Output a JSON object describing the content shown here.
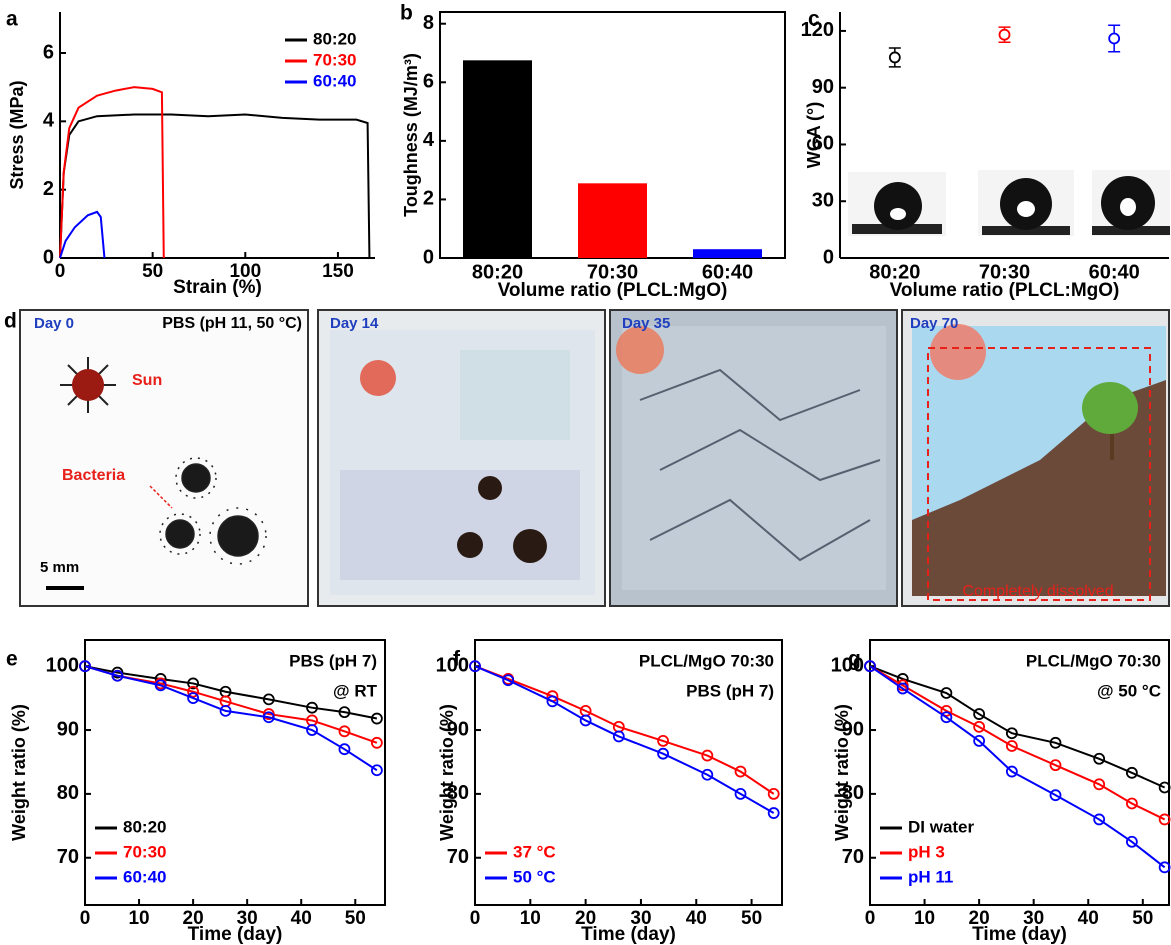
{
  "chart_data": [
    {
      "panel": "a",
      "type": "line",
      "markers": false,
      "xlabel": "Strain (%)",
      "ylabel": "Stress (MPa)",
      "xlim": [
        0,
        170
      ],
      "ylim": [
        0,
        7.2
      ],
      "xticks": [
        0,
        50,
        100,
        150
      ],
      "yticks": [
        0,
        2,
        4,
        6
      ],
      "legend": "upper right",
      "series": [
        {
          "name": "80:20",
          "color": "#000000",
          "x": [
            0,
            2,
            5,
            10,
            20,
            40,
            60,
            80,
            100,
            120,
            140,
            160,
            166,
            167
          ],
          "values": [
            0,
            2.5,
            3.6,
            4.0,
            4.15,
            4.2,
            4.2,
            4.15,
            4.2,
            4.1,
            4.05,
            4.05,
            3.95,
            0
          ]
        },
        {
          "name": "70:30",
          "color": "#ff0000",
          "x": [
            0,
            2,
            5,
            10,
            20,
            30,
            40,
            50,
            55,
            56
          ],
          "values": [
            0,
            2.5,
            3.8,
            4.4,
            4.75,
            4.9,
            5.0,
            4.95,
            4.85,
            0
          ]
        },
        {
          "name": "60:40",
          "color": "#0000ff",
          "x": [
            0,
            3,
            8,
            15,
            20,
            22,
            24
          ],
          "values": [
            0,
            0.5,
            0.9,
            1.25,
            1.35,
            1.2,
            0
          ]
        }
      ]
    },
    {
      "panel": "b",
      "type": "bar",
      "xlabel": "Volume ratio (PLCL:MgO)",
      "ylabel": "Toughness (MJ/m³)",
      "ylim": [
        0,
        8.4
      ],
      "yticks": [
        0,
        2,
        4,
        6,
        8
      ],
      "categories": [
        "80:20",
        "70:30",
        "60:40"
      ],
      "values": [
        6.75,
        2.55,
        0.3
      ],
      "colors": [
        "#000000",
        "#ff0000",
        "#0000ff"
      ]
    },
    {
      "panel": "c",
      "type": "scatter",
      "xlabel": "Volume ratio (PLCL:MgO)",
      "ylabel": "WCA (°)",
      "ylim": [
        0,
        130
      ],
      "yticks": [
        0,
        30,
        60,
        90,
        120
      ],
      "categories": [
        "80:20",
        "70:30",
        "60:40"
      ],
      "values": [
        106,
        118,
        116
      ],
      "errors": [
        5,
        4,
        7
      ],
      "colors": [
        "#000000",
        "#ff0000",
        "#0000ff"
      ]
    },
    {
      "panel": "e",
      "type": "line",
      "markers": true,
      "xlabel": "Time (day)",
      "ylabel": "Weight ratio (%)",
      "xlim": [
        0,
        55.5
      ],
      "ylim": [
        62.6,
        104.1
      ],
      "xticks": [
        0,
        10,
        20,
        30,
        40,
        50
      ],
      "yticks": [
        70,
        80,
        90,
        100
      ],
      "legend": "lower left",
      "annotations": [
        "PBS (pH 7)",
        "@ RT"
      ],
      "x": [
        0,
        6,
        14,
        20,
        26,
        34,
        42,
        48,
        54
      ],
      "series": [
        {
          "name": "80:20",
          "color": "#000000",
          "values": [
            100,
            99,
            98,
            97.3,
            96,
            94.8,
            93.5,
            92.8,
            91.8
          ]
        },
        {
          "name": "70:30",
          "color": "#ff0000",
          "values": [
            100,
            98.5,
            97.3,
            96,
            94.5,
            92.5,
            91.5,
            89.8,
            88
          ]
        },
        {
          "name": "60:40",
          "color": "#0000ff",
          "values": [
            100,
            98.5,
            97,
            95,
            93,
            92,
            90,
            87,
            83.7
          ]
        }
      ]
    },
    {
      "panel": "f",
      "type": "line",
      "markers": true,
      "xlabel": "Time (day)",
      "ylabel": "Weight ratio (%)",
      "xlim": [
        0,
        55.5
      ],
      "ylim": [
        62.6,
        104.1
      ],
      "xticks": [
        0,
        10,
        20,
        30,
        40,
        50
      ],
      "yticks": [
        70,
        80,
        90,
        100
      ],
      "legend": "lower left",
      "annotations": [
        "PLCL/MgO 70:30",
        "PBS (pH 7)"
      ],
      "x": [
        0,
        6,
        14,
        20,
        26,
        34,
        42,
        48,
        54
      ],
      "series": [
        {
          "name": "37 °C",
          "color": "#ff0000",
          "values": [
            100,
            98,
            95.3,
            93,
            90.5,
            88.3,
            86,
            83.5,
            80
          ]
        },
        {
          "name": "50 °C",
          "color": "#0000ff",
          "values": [
            100,
            97.8,
            94.5,
            91.5,
            89,
            86.3,
            83,
            80,
            77
          ]
        }
      ]
    },
    {
      "panel": "g",
      "type": "line",
      "markers": true,
      "xlabel": "Time (day)",
      "ylabel": "Weight ratio (%)",
      "xlim": [
        0,
        54.8
      ],
      "ylim": [
        62.6,
        104.1
      ],
      "xticks": [
        0,
        10,
        20,
        30,
        40,
        50
      ],
      "yticks": [
        70,
        80,
        90,
        100
      ],
      "legend": "lower left",
      "annotations": [
        "PLCL/MgO 70:30",
        "@ 50 °C"
      ],
      "x": [
        0,
        6,
        14,
        20,
        26,
        34,
        42,
        48,
        54
      ],
      "series": [
        {
          "name": "DI water",
          "color": "#000000",
          "values": [
            100,
            98,
            95.8,
            92.5,
            89.5,
            88,
            85.5,
            83.3,
            81
          ]
        },
        {
          "name": "pH 3",
          "color": "#ff0000",
          "values": [
            100,
            97,
            93,
            90.5,
            87.5,
            84.5,
            81.5,
            78.5,
            76
          ]
        },
        {
          "name": "pH 11",
          "color": "#0000ff",
          "values": [
            100,
            96.5,
            92,
            88.3,
            83.5,
            79.8,
            76,
            72.5,
            68.5
          ]
        }
      ]
    }
  ],
  "photo_panel": {
    "panel": "d",
    "condition": "PBS (pH 11, 50 °C)",
    "days": [
      "Day 0",
      "Day 14",
      "Day 35",
      "Day 70"
    ],
    "sun": "Sun",
    "bacteria": "Bacteria",
    "scale": "5 mm",
    "result": "Completely dissolved"
  }
}
